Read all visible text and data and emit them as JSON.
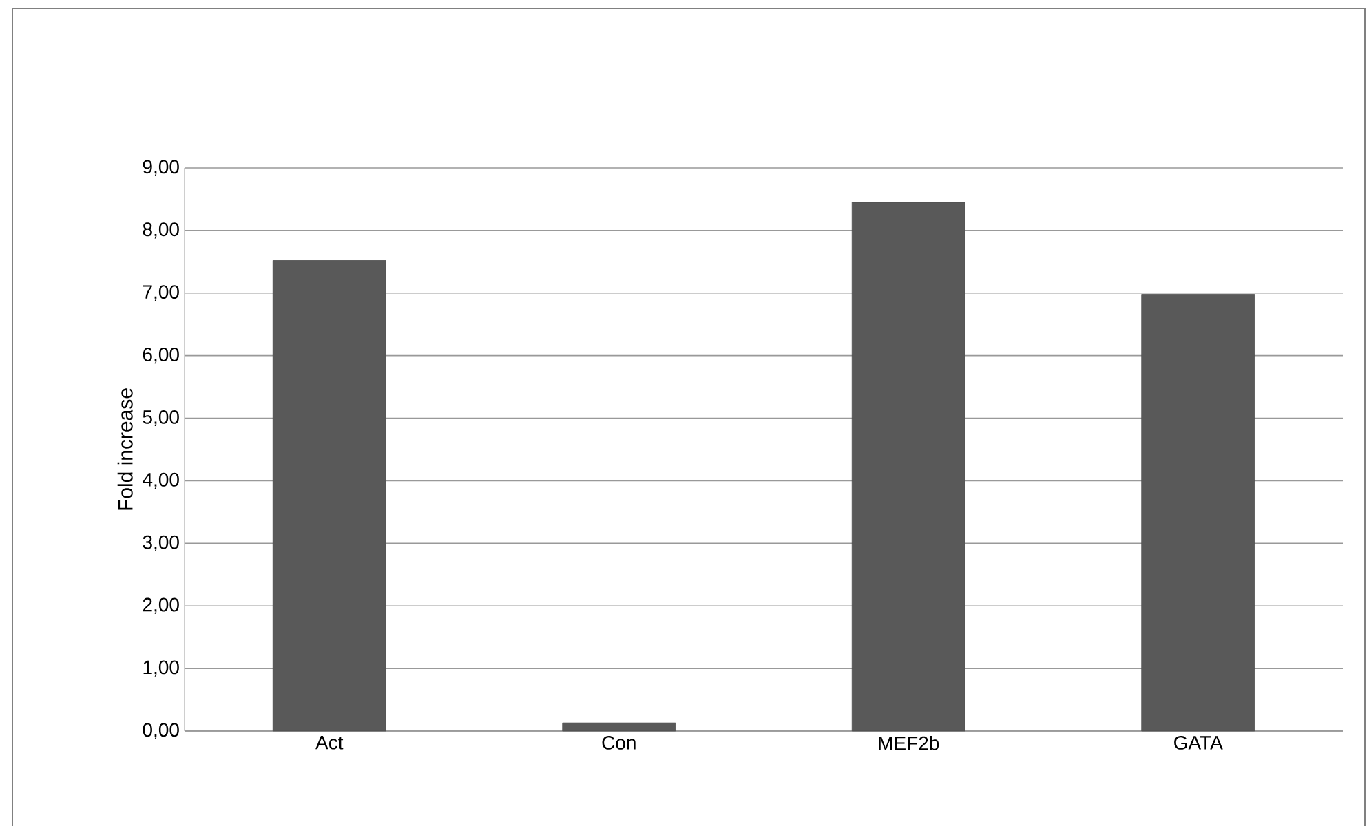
{
  "chart_data": {
    "type": "bar",
    "ylabel": "Fold increase",
    "categories": [
      "Act",
      "Con",
      "MEF2b",
      "GATA"
    ],
    "values": [
      7.52,
      0.13,
      8.45,
      6.98
    ],
    "color": "#595959",
    "ylim": [
      0,
      9
    ],
    "yticks": [
      {
        "value": 0,
        "label": "0,00"
      },
      {
        "value": 1,
        "label": "1,00"
      },
      {
        "value": 2,
        "label": "2,00"
      },
      {
        "value": 3,
        "label": "3,00"
      },
      {
        "value": 4,
        "label": "4,00"
      },
      {
        "value": 5,
        "label": "5,00"
      },
      {
        "value": 6,
        "label": "6,00"
      },
      {
        "value": 7,
        "label": "7,00"
      },
      {
        "value": 8,
        "label": "8,00"
      },
      {
        "value": 9,
        "label": "9,00"
      }
    ],
    "grid": "y"
  }
}
